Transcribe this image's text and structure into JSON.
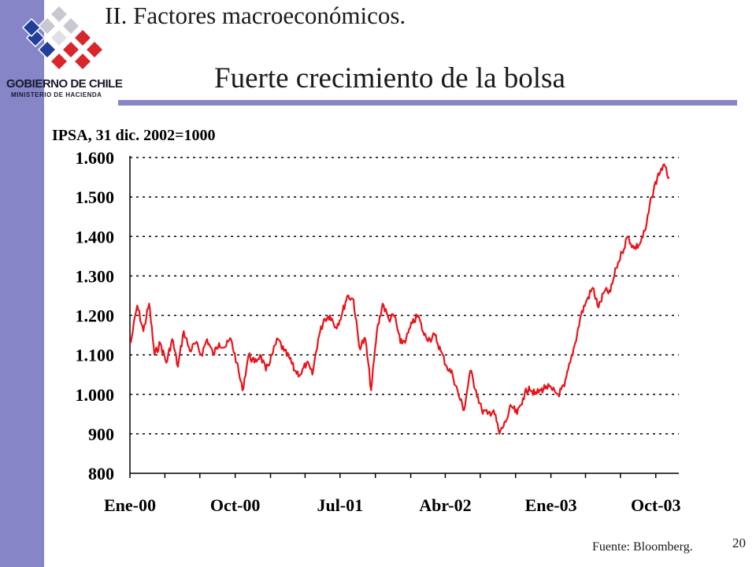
{
  "header": {
    "logo_line1": "GOBIERNO DE CHILE",
    "logo_line2": "MINISTERIO DE HACIENDA",
    "section_title": "II. Factores macroeconómicos.",
    "slide_title": "Fuerte crecimiento de la bolsa"
  },
  "footer": {
    "source": "Fuente: Bloomberg.",
    "page_number": "20"
  },
  "colors": {
    "accent_band": "#8585c8",
    "series_line": "#e8141b",
    "logo_blue": "#1f3f9a",
    "logo_red": "#d9262c"
  },
  "chart_data": {
    "type": "line",
    "title": "",
    "ylabel": "IPSA, 31 dic. 2002=1000",
    "xlabel": "",
    "ylim": [
      800,
      1600
    ],
    "yticks": [
      800,
      900,
      1000,
      1100,
      1200,
      1300,
      1400,
      1500,
      1600
    ],
    "ytick_labels": [
      "800",
      "900",
      "1.000",
      "1.100",
      "1.200",
      "1.300",
      "1.400",
      "1.500",
      "1.600"
    ],
    "xlim": [
      "2000-01-01",
      "2003-11-30"
    ],
    "xtick_labels": [
      "Ene-00",
      "Oct-00",
      "Jul-01",
      "Abr-02",
      "Ene-03",
      "Oct-03"
    ],
    "xtick_dates": [
      "2000-01-01",
      "2000-10-01",
      "2001-07-01",
      "2002-04-01",
      "2003-01-01",
      "2003-10-01"
    ],
    "grid": "horizontal dotted",
    "series": [
      {
        "name": "",
        "x": [
          "2000-01-03",
          "2000-01-20",
          "2000-02-05",
          "2000-02-20",
          "2000-03-05",
          "2000-03-20",
          "2000-04-05",
          "2000-04-20",
          "2000-05-05",
          "2000-05-20",
          "2000-06-05",
          "2000-06-20",
          "2000-07-05",
          "2000-07-20",
          "2000-08-05",
          "2000-08-20",
          "2000-09-05",
          "2000-09-20",
          "2000-10-05",
          "2000-10-20",
          "2000-11-05",
          "2000-11-20",
          "2000-12-05",
          "2000-12-20",
          "2001-01-05",
          "2001-01-20",
          "2001-02-05",
          "2001-02-20",
          "2001-03-05",
          "2001-03-20",
          "2001-04-05",
          "2001-04-20",
          "2001-05-05",
          "2001-05-20",
          "2001-06-05",
          "2001-06-20",
          "2001-07-05",
          "2001-07-20",
          "2001-08-05",
          "2001-08-20",
          "2001-09-05",
          "2001-09-20",
          "2001-10-05",
          "2001-10-20",
          "2001-11-05",
          "2001-11-20",
          "2001-12-05",
          "2001-12-20",
          "2002-01-05",
          "2002-01-20",
          "2002-02-05",
          "2002-02-20",
          "2002-03-05",
          "2002-03-20",
          "2002-04-05",
          "2002-04-20",
          "2002-05-05",
          "2002-05-20",
          "2002-06-05",
          "2002-06-20",
          "2002-07-05",
          "2002-07-20",
          "2002-08-05",
          "2002-08-20",
          "2002-09-05",
          "2002-09-20",
          "2002-10-05",
          "2002-10-20",
          "2002-11-05",
          "2002-11-20",
          "2002-12-05",
          "2002-12-20",
          "2003-01-05",
          "2003-01-20",
          "2003-02-05",
          "2003-02-20",
          "2003-03-05",
          "2003-03-20",
          "2003-04-05",
          "2003-04-20",
          "2003-05-05",
          "2003-05-20",
          "2003-06-05",
          "2003-06-20",
          "2003-07-05",
          "2003-07-20",
          "2003-08-05",
          "2003-08-20",
          "2003-09-05",
          "2003-09-20",
          "2003-10-05",
          "2003-10-20",
          "2003-11-05"
        ],
        "values": [
          1130,
          1225,
          1160,
          1230,
          1100,
          1130,
          1080,
          1140,
          1070,
          1160,
          1110,
          1130,
          1100,
          1140,
          1100,
          1130,
          1120,
          1140,
          1080,
          1010,
          1100,
          1080,
          1100,
          1060,
          1100,
          1140,
          1110,
          1090,
          1060,
          1050,
          1080,
          1050,
          1140,
          1190,
          1200,
          1170,
          1200,
          1250,
          1240,
          1120,
          1140,
          1010,
          1160,
          1230,
          1190,
          1200,
          1130,
          1140,
          1180,
          1200,
          1150,
          1140,
          1150,
          1110,
          1070,
          1050,
          1000,
          960,
          1060,
          1010,
          960,
          950,
          960,
          900,
          930,
          970,
          950,
          990,
          1020,
          1000,
          1010,
          1020,
          1010,
          1000,
          1020,
          1080,
          1130,
          1200,
          1240,
          1270,
          1220,
          1260,
          1260,
          1320,
          1360,
          1400,
          1370,
          1380,
          1420,
          1500,
          1550,
          1580,
          1550
        ]
      }
    ]
  }
}
